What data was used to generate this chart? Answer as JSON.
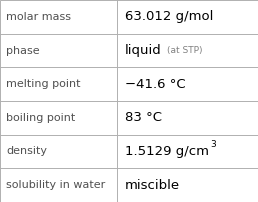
{
  "rows": [
    {
      "label": "molar mass",
      "value": "63.012 g/mol",
      "type": "plain"
    },
    {
      "label": "phase",
      "value": "liquid",
      "suffix": "(at STP)",
      "type": "suffix"
    },
    {
      "label": "melting point",
      "value": "−41.6 °C",
      "type": "plain"
    },
    {
      "label": "boiling point",
      "value": "83 °C",
      "type": "plain"
    },
    {
      "label": "density",
      "value": "1.5129 g/cm",
      "superscript": "3",
      "type": "superscript"
    },
    {
      "label": "solubility in water",
      "value": "miscible",
      "type": "plain"
    }
  ],
  "bg_color": "#ffffff",
  "border_color": "#b0b0b0",
  "label_color": "#505050",
  "value_color": "#000000",
  "suffix_color": "#808080",
  "label_fontsize": 8.0,
  "value_fontsize": 9.5,
  "suffix_fontsize": 6.5,
  "sup_fontsize": 6.5,
  "col_split": 0.455,
  "fig_width": 2.58,
  "fig_height": 2.02,
  "dpi": 100
}
